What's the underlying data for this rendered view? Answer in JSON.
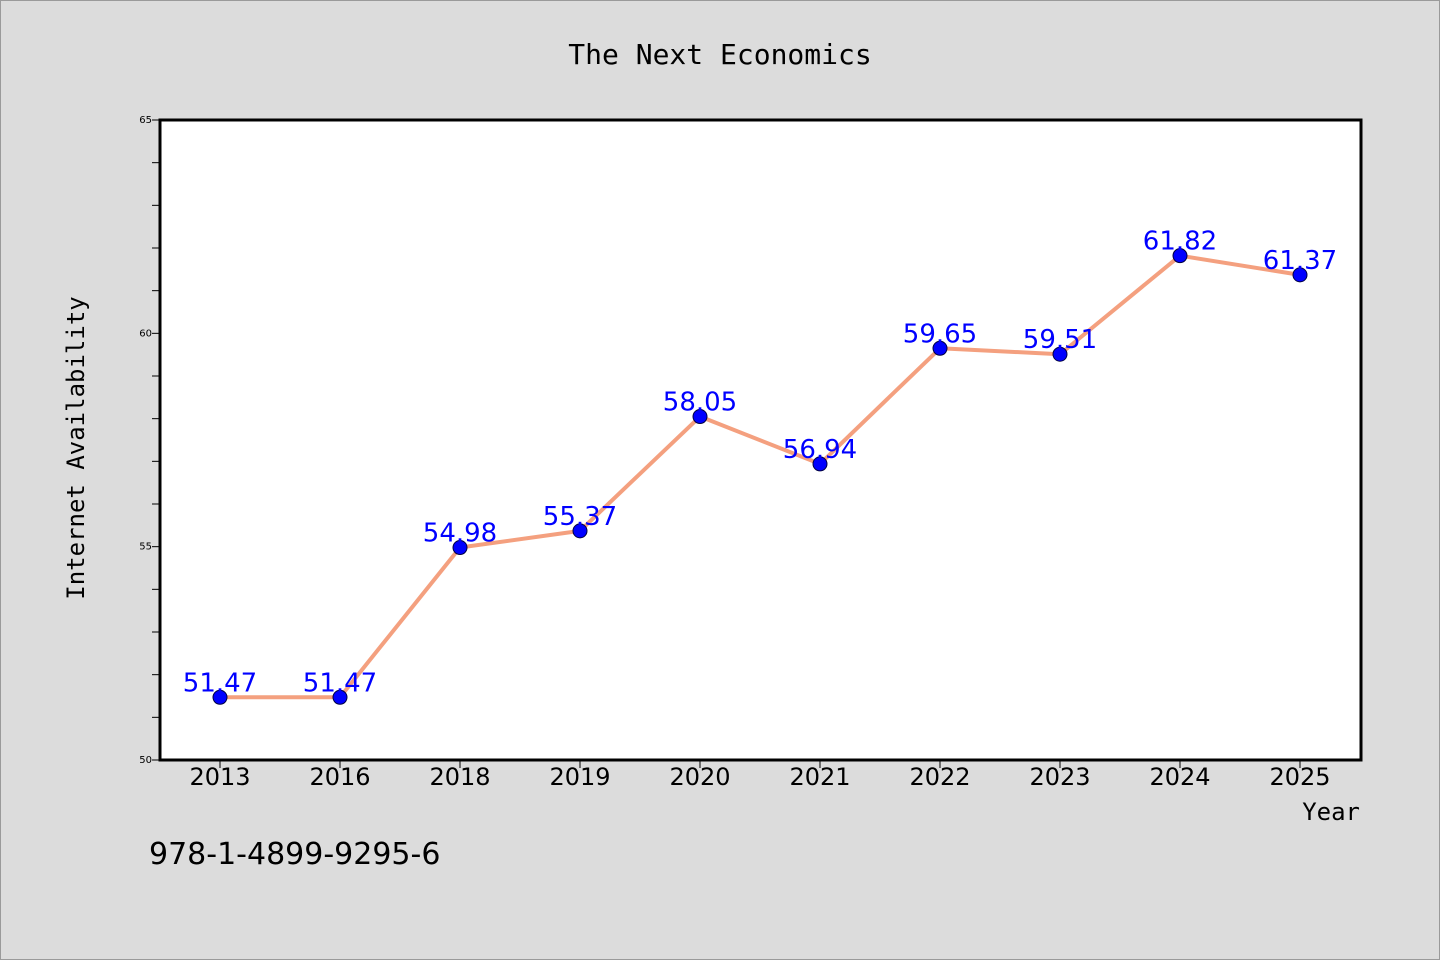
{
  "isbn": "978-1-4899-9295-6",
  "colors": {
    "background": "#dcdcdc",
    "plot_area": "#ffffff",
    "line": "#f4a07f",
    "marker": "#0000ff",
    "data_label": "#0000ff"
  },
  "chart_data": {
    "type": "line",
    "title": "The Next Economics",
    "xlabel": "Year",
    "ylabel": "Internet Availability",
    "categories": [
      "2013",
      "2016",
      "2018",
      "2019",
      "2020",
      "2021",
      "2022",
      "2023",
      "2024",
      "2025"
    ],
    "values": [
      51.47,
      51.47,
      54.98,
      55.37,
      58.05,
      56.94,
      59.65,
      59.51,
      61.82,
      61.37
    ],
    "data_labels": [
      "51.47",
      "51.47",
      "54.98",
      "55.37",
      "58.05",
      "56.94",
      "59.65",
      "59.51",
      "61.82",
      "61.37"
    ],
    "ylim": [
      50,
      65
    ],
    "yticks": [
      50,
      55,
      60,
      65
    ],
    "ytick_labels": [
      "50",
      "55",
      "60",
      "65"
    ],
    "grid": false,
    "legend": "none"
  }
}
